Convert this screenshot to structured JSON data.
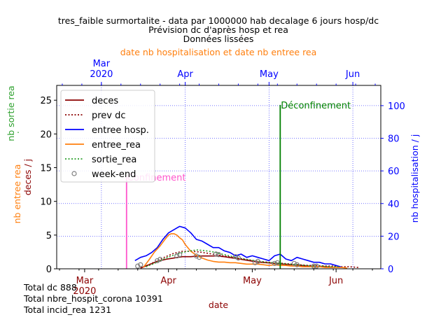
{
  "chart_data": {
    "type": "line",
    "title_lines": [
      "tres_faible surmortalite - data par 1000000 hab decalage 6 jours hosp/dc",
      "Prévision dc d'après hosp et rea",
      "Données lissées"
    ],
    "top_axis_label": "date nb hospitalisation et date nb entree rea",
    "xlabel": "date",
    "ylabel_left": "deces / j",
    "ylabel_left_outer": "nb entree rea",
    "ylabel_left_outer2": "nb sortie rea",
    "ylabel_left_outer2_dot": ".",
    "ylabel_right": "nb hospitalisation / j",
    "x_range_days": [
      0,
      116
    ],
    "y_left_range": [
      0,
      27.2
    ],
    "y_right_range": [
      0,
      112.4
    ],
    "y_left_ticks": [
      0,
      5,
      10,
      15,
      20,
      25
    ],
    "y_right_ticks": [
      0,
      20,
      40,
      60,
      80,
      100
    ],
    "x_ticks_bottom": [
      {
        "day": 10,
        "label": "Mar",
        "label2": "2020"
      },
      {
        "day": 40,
        "label": "Apr",
        "label2": ""
      },
      {
        "day": 70,
        "label": "May",
        "label2": ""
      },
      {
        "day": 100,
        "label": "Jun",
        "label2": ""
      }
    ],
    "x_ticks_top": [
      {
        "day": 16,
        "label": "Mar",
        "label2": "2020"
      },
      {
        "day": 46,
        "label": "Apr",
        "label2": ""
      },
      {
        "day": 76,
        "label": "May",
        "label2": ""
      },
      {
        "day": 106,
        "label": "Jun",
        "label2": ""
      }
    ],
    "grid": true,
    "legend_position": "top-left",
    "annotations": [
      {
        "text": "Confinement",
        "day": 25,
        "color": "#ff55cc",
        "line_top": 13.6
      },
      {
        "text": "Déconfinement",
        "day": 80,
        "color": "#008000",
        "line_top": 24.3
      }
    ],
    "series": [
      {
        "name": "deces",
        "axis": "left",
        "color": "#8b0000",
        "style": "solid",
        "x": [
          30,
          33,
          36,
          39,
          42,
          45,
          48,
          51,
          54,
          57,
          60,
          63,
          66,
          69,
          72,
          75,
          78,
          81,
          84,
          87,
          90,
          93,
          96,
          99
        ],
        "y": [
          0.1,
          0.6,
          1.1,
          1.4,
          1.6,
          1.8,
          1.8,
          1.9,
          1.9,
          1.9,
          1.8,
          1.6,
          1.4,
          1.2,
          1.0,
          0.9,
          0.8,
          0.7,
          0.6,
          0.5,
          0.4,
          0.3,
          0.3,
          0.2
        ]
      },
      {
        "name": "prev dc",
        "axis": "left",
        "color": "#8b0000",
        "style": "dotted",
        "x": [
          30,
          33,
          36,
          39,
          42,
          45,
          48,
          51,
          54,
          57,
          60,
          63,
          66,
          69,
          72,
          75,
          78,
          81,
          84,
          87,
          90,
          93,
          96,
          99,
          102,
          105,
          108
        ],
        "y": [
          0.2,
          0.6,
          1.2,
          1.8,
          2.3,
          2.6,
          2.6,
          2.5,
          2.3,
          2.1,
          1.9,
          1.7,
          1.5,
          1.3,
          1.1,
          1.0,
          0.9,
          0.8,
          0.7,
          0.6,
          0.5,
          0.5,
          0.4,
          0.4,
          0.3,
          0.3,
          0.2
        ]
      },
      {
        "name": "entree hosp.",
        "axis": "right",
        "color": "#0000ff",
        "style": "solid",
        "x": [
          28,
          30,
          32,
          34,
          36,
          38,
          40,
          42,
          44,
          46,
          48,
          50,
          52,
          54,
          56,
          58,
          60,
          62,
          64,
          66,
          68,
          70,
          72,
          74,
          76,
          78,
          80,
          82,
          84,
          86,
          88,
          90,
          92,
          94,
          96,
          98,
          100,
          102
        ],
        "y": [
          5,
          7,
          8,
          10,
          13,
          18,
          22,
          24,
          26,
          25,
          22,
          18,
          17,
          15,
          13,
          13,
          11,
          10,
          8,
          9,
          7,
          8,
          7,
          6,
          5,
          8,
          9,
          6,
          5,
          7,
          6,
          5,
          4,
          4,
          3,
          3,
          2,
          1
        ]
      },
      {
        "name": "entree_rea",
        "axis": "left",
        "color": "#ff7f0e",
        "style": "solid",
        "x": [
          31,
          33,
          35,
          37,
          39,
          40,
          41,
          42,
          43,
          44,
          45,
          46,
          48,
          50,
          52,
          54,
          56,
          58,
          60,
          62,
          64,
          66,
          68,
          70,
          72,
          74,
          76,
          78,
          80,
          82,
          84,
          86,
          88,
          90,
          92,
          94,
          96,
          98,
          100,
          102,
          104
        ],
        "y": [
          0.2,
          1.3,
          2.5,
          3.4,
          4.5,
          5.0,
          5.2,
          5.2,
          5.0,
          4.6,
          4.3,
          3.6,
          2.6,
          2.0,
          1.6,
          1.3,
          1.1,
          1.0,
          1.0,
          0.9,
          0.9,
          0.8,
          0.7,
          0.7,
          0.7,
          0.6,
          0.5,
          0.6,
          0.5,
          0.5,
          0.4,
          0.4,
          0.3,
          0.3,
          0.3,
          0.3,
          0.2,
          0.2,
          0.2,
          0.2,
          0.1
        ]
      },
      {
        "name": "sortie_rea",
        "axis": "left",
        "color": "#2ca02c",
        "style": "dotted",
        "x": [
          32,
          35,
          38,
          41,
          44,
          47,
          50,
          53,
          56,
          59,
          62,
          65,
          68,
          71,
          74,
          77,
          80,
          83,
          86,
          89,
          92,
          95,
          98,
          101
        ],
        "y": [
          0.3,
          0.8,
          1.4,
          1.9,
          2.3,
          2.6,
          2.8,
          2.7,
          2.5,
          2.2,
          1.9,
          1.6,
          1.4,
          1.2,
          1.0,
          0.9,
          0.8,
          0.7,
          0.6,
          0.5,
          0.4,
          0.4,
          0.3,
          0.3
        ]
      },
      {
        "name": "week-end",
        "axis": "left",
        "color": "#808080",
        "style": "markers",
        "x": [
          29,
          30,
          36,
          37,
          43,
          44,
          50,
          51,
          57,
          58,
          64,
          65,
          71,
          72,
          78,
          79,
          85,
          86,
          92,
          93
        ],
        "y": [
          0.4,
          0.6,
          1.2,
          1.4,
          1.9,
          2.1,
          1.9,
          1.7,
          2.2,
          2.1,
          1.8,
          1.6,
          0.9,
          1.1,
          0.8,
          0.9,
          0.8,
          0.6,
          0.4,
          0.4
        ]
      }
    ]
  },
  "totals": [
    "Total dc 888",
    "Total nbre_hospit_corona 10391",
    "Total incid_rea 1231"
  ]
}
